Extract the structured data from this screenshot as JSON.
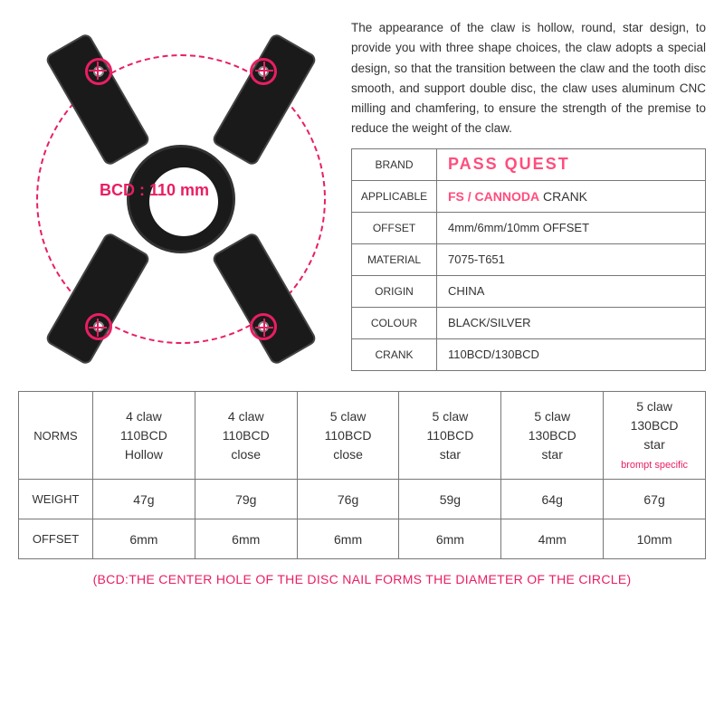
{
  "colors": {
    "accent": "#e91e63",
    "accent_light": "#ff4d7d",
    "text": "#333333",
    "border": "#777777",
    "product_body": "#1a1a1a",
    "background": "#ffffff"
  },
  "product_image": {
    "bcd_label": "BCD : 110 mm",
    "circle_dash": true
  },
  "description": "The appearance of the claw is hollow, round, star design, to provide you with three shape choices, the claw adopts a special design, so that the transition between the claw and the tooth disc smooth, and support double disc, the claw uses aluminum CNC milling and chamfering, to ensure the strength of the premise to reduce the weight of the claw.",
  "spec_rows": [
    {
      "label": "BRAND",
      "value": "PASS QUEST",
      "style": "brand"
    },
    {
      "label": "APPLICABLE",
      "value_main": "FS / CANNODA",
      "value_suffix": " CRANK",
      "style": "applicable"
    },
    {
      "label": "OFFSET",
      "value": "4mm/6mm/10mm OFFSET"
    },
    {
      "label": "MATERIAL",
      "value": "7075-T651"
    },
    {
      "label": "ORIGIN",
      "value": "CHINA"
    },
    {
      "label": "COLOUR",
      "value": "BLACK/SILVER"
    },
    {
      "label": "CRANK",
      "value": "110BCD/130BCD"
    }
  ],
  "norms": {
    "row_header": "NORMS",
    "weight_header": "WEIGHT",
    "offset_header": "OFFSET",
    "columns": [
      {
        "l1": "4 claw",
        "l2": "110BCD",
        "l3": "Hollow",
        "weight": "47g",
        "offset": "6mm"
      },
      {
        "l1": "4 claw",
        "l2": "110BCD",
        "l3": "close",
        "weight": "79g",
        "offset": "6mm"
      },
      {
        "l1": "5 claw",
        "l2": "110BCD",
        "l3": "close",
        "weight": "76g",
        "offset": "6mm"
      },
      {
        "l1": "5 claw",
        "l2": "110BCD",
        "l3": "star",
        "weight": "59g",
        "offset": "6mm"
      },
      {
        "l1": "5 claw",
        "l2": "130BCD",
        "l3": "star",
        "weight": "64g",
        "offset": "4mm"
      },
      {
        "l1": "5 claw",
        "l2": "130BCD",
        "l3": "star",
        "note": "brompt specific",
        "weight": "67g",
        "offset": "10mm"
      }
    ]
  },
  "footer": "(BCD:THE CENTER HOLE OF THE DISC NAIL FORMS THE DIAMETER OF THE CIRCLE)"
}
